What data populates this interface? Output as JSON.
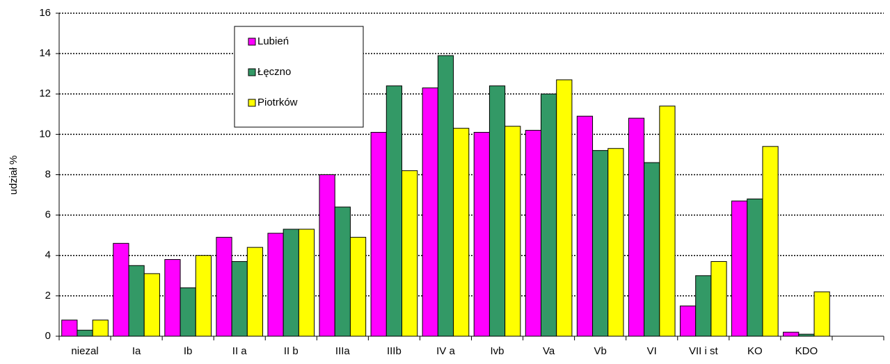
{
  "chart_data": {
    "type": "bar",
    "y_label": "udział %",
    "categories": [
      "niezal",
      "Ia",
      "Ib",
      "II a",
      "II b",
      "IIIa",
      "IIIb",
      "IV a",
      "Ivb",
      "Va",
      "Vb",
      "VI",
      "VII i st",
      "KO",
      "KDO",
      null
    ],
    "series": [
      {
        "name": "Lubień",
        "color": "#ff00ff",
        "values": [
          0.8,
          4.6,
          3.8,
          4.9,
          5.1,
          8.0,
          10.1,
          12.3,
          10.1,
          10.2,
          10.9,
          10.8,
          1.5,
          6.7,
          0.2,
          null
        ]
      },
      {
        "name": "Łęczno",
        "color": "#339966",
        "values": [
          0.3,
          3.5,
          2.4,
          3.7,
          5.3,
          6.4,
          12.4,
          13.9,
          12.4,
          12.0,
          9.2,
          8.6,
          3.0,
          6.8,
          0.1,
          null
        ]
      },
      {
        "name": "Piotrków",
        "color": "#ffff00",
        "values": [
          0.8,
          3.1,
          4.0,
          4.4,
          5.3,
          4.9,
          8.2,
          10.3,
          10.4,
          12.7,
          9.3,
          11.4,
          3.7,
          9.4,
          2.2,
          null
        ]
      }
    ],
    "ylim": [
      0,
      16
    ],
    "yticks": [
      0,
      2,
      4,
      6,
      8,
      10,
      12,
      14,
      16
    ],
    "grid": true,
    "legend": "upper-left"
  }
}
